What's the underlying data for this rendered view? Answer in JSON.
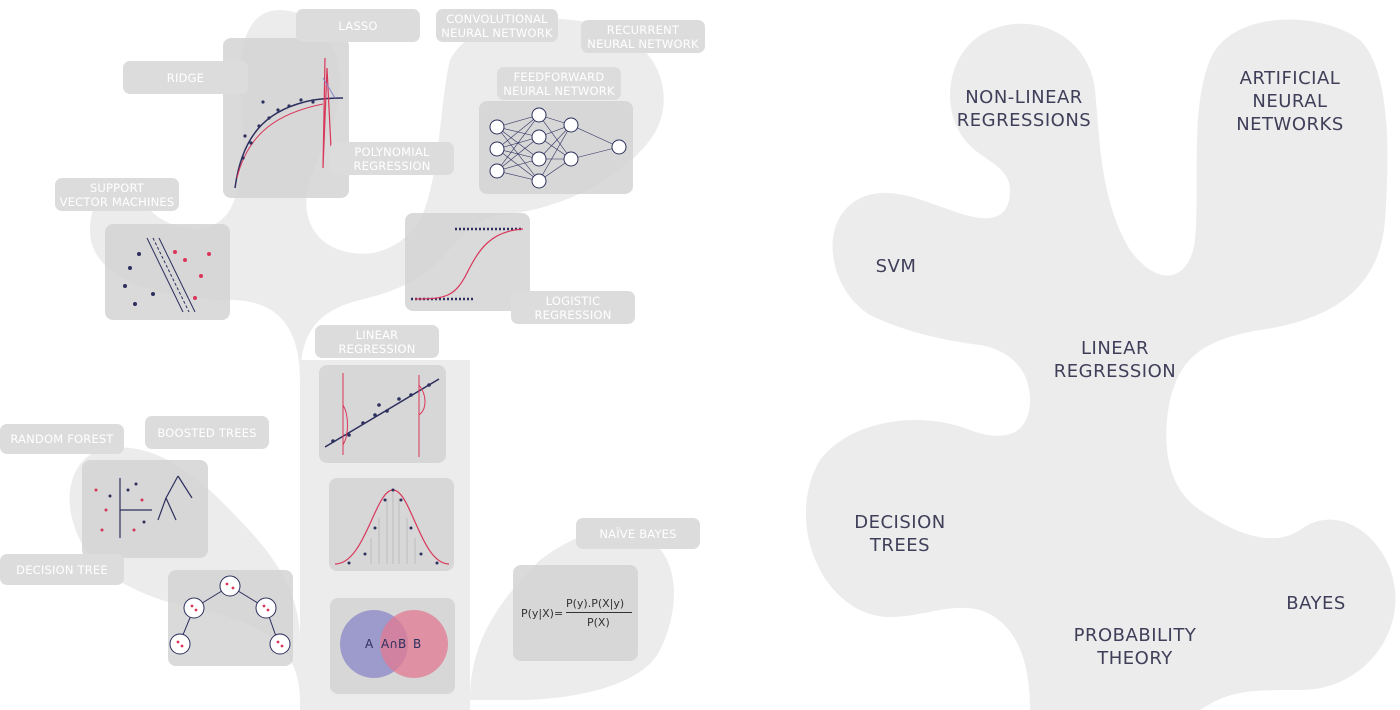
{
  "left_tree": {
    "tags": {
      "lasso": "LASSO",
      "cnn": "CONVOLUTIONAL\nNEURAL NETWORK",
      "rnn": "RECURRENT\nNEURAL NETWORK",
      "ridge": "RIDGE",
      "ffnn": "FEEDFORWARD\nNEURAL NETWORK",
      "poly": "POLYNOMIAL\nREGRESSION",
      "svm": "SUPPORT\nVECTOR MACHINES",
      "logistic": "LOGISTIC\nREGRESSION",
      "linear": "LINEAR\nREGRESSION",
      "random_forest": "RANDOM FOREST",
      "boosted": "BOOSTED TREES",
      "decision_tree": "DECISION TREE",
      "naive_bayes": "NAÏVE BAYES"
    },
    "venn": {
      "a": "A",
      "ab": "A∩B",
      "b": "B"
    },
    "formula": {
      "lhs": "P(y|X)=",
      "numerator": "P(y).P(X|y)",
      "denominator": "P(X)"
    }
  },
  "right_tree": {
    "labels": {
      "nonlinear": "NON-LINEAR\nREGRESSIONS",
      "ann": "ARTIFICIAL\nNEURAL\nNETWORKS",
      "svm": "SVM",
      "linear": "LINEAR\nREGRESSION",
      "decision": "DECISION\nTREES",
      "bayes": "BAYES",
      "probability": "PROBABILITY\nTHEORY"
    }
  },
  "colors": {
    "shape": "#ececec",
    "panel": "#d4d4d4",
    "tag": "#dcdcdc",
    "navy": "#2d2f5e",
    "red": "#d9365a",
    "venn_a": "#8a86c8",
    "venn_b": "#e27a92"
  }
}
